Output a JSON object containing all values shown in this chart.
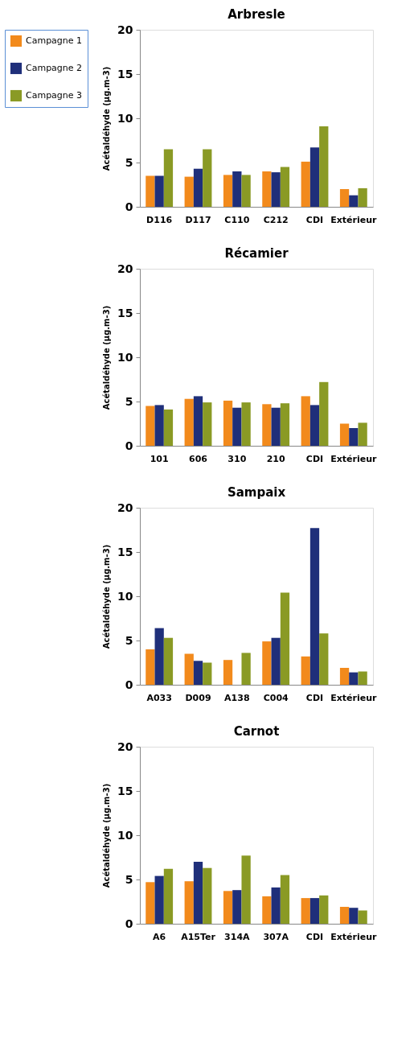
{
  "chart_data": [
    {
      "type": "bar",
      "title": "Arbresle",
      "ylabel": "Acétaldéhyde (µg.m-3)",
      "categories": [
        "D116",
        "D117",
        "C110",
        "C212",
        "CDI",
        "Extérieur"
      ],
      "ylim": [
        0,
        20
      ],
      "yticks": [
        0,
        5,
        10,
        15,
        20
      ],
      "grid": false,
      "legend": "left",
      "series": [
        {
          "name": "Campagne 1",
          "color": "#f28a1c",
          "values": [
            3.5,
            3.4,
            3.6,
            4.0,
            5.1,
            2.0
          ]
        },
        {
          "name": "Campagne 2",
          "color": "#1f2f7a",
          "values": [
            3.5,
            4.3,
            4.0,
            3.9,
            6.7,
            1.3
          ]
        },
        {
          "name": "Campagne 3",
          "color": "#8a9a25",
          "values": [
            6.5,
            6.5,
            3.6,
            4.5,
            9.1,
            2.1
          ]
        }
      ]
    },
    {
      "type": "bar",
      "title": "Récamier",
      "ylabel": "Acétaldéhyde (µg.m-3)",
      "categories": [
        "101",
        "606",
        "310",
        "210",
        "CDI",
        "Extérieur"
      ],
      "ylim": [
        0,
        20
      ],
      "yticks": [
        0,
        5,
        10,
        15,
        20
      ],
      "grid": false,
      "series": [
        {
          "color": "#f28a1c",
          "values": [
            4.5,
            5.3,
            5.1,
            4.7,
            5.6,
            2.5
          ]
        },
        {
          "color": "#1f2f7a",
          "values": [
            4.6,
            5.6,
            4.3,
            4.3,
            4.6,
            2.0
          ]
        },
        {
          "color": "#8a9a25",
          "values": [
            4.1,
            4.9,
            4.9,
            4.8,
            7.2,
            2.6
          ]
        }
      ]
    },
    {
      "type": "bar",
      "title": "Sampaix",
      "ylabel": "Acétaldéhyde (µg.m-3)",
      "categories": [
        "A033",
        "D009",
        "A138",
        "C004",
        "CDI",
        "Extérieur"
      ],
      "ylim": [
        0,
        20
      ],
      "yticks": [
        0,
        5,
        10,
        15,
        20
      ],
      "grid": false,
      "series": [
        {
          "color": "#f28a1c",
          "values": [
            4.0,
            3.5,
            2.8,
            4.9,
            3.2,
            1.9
          ]
        },
        {
          "color": "#1f2f7a",
          "values": [
            6.4,
            2.7,
            null,
            5.3,
            17.7,
            1.4
          ]
        },
        {
          "color": "#8a9a25",
          "values": [
            5.3,
            2.5,
            3.6,
            10.4,
            5.8,
            1.5
          ]
        }
      ]
    },
    {
      "type": "bar",
      "title": "Carnot",
      "ylabel": "Acétaldéhyde (µg.m-3)",
      "categories": [
        "A6",
        "A15Ter",
        "314A",
        "307A",
        "CDI",
        "Extérieur"
      ],
      "ylim": [
        0,
        20
      ],
      "yticks": [
        0,
        5,
        10,
        15,
        20
      ],
      "grid": false,
      "series": [
        {
          "color": "#f28a1c",
          "values": [
            4.7,
            4.8,
            3.7,
            3.1,
            2.9,
            1.9
          ]
        },
        {
          "color": "#1f2f7a",
          "values": [
            5.4,
            7.0,
            3.8,
            4.1,
            2.9,
            1.8
          ]
        },
        {
          "color": "#8a9a25",
          "values": [
            6.2,
            6.3,
            7.7,
            5.5,
            3.2,
            1.5
          ]
        }
      ]
    }
  ]
}
